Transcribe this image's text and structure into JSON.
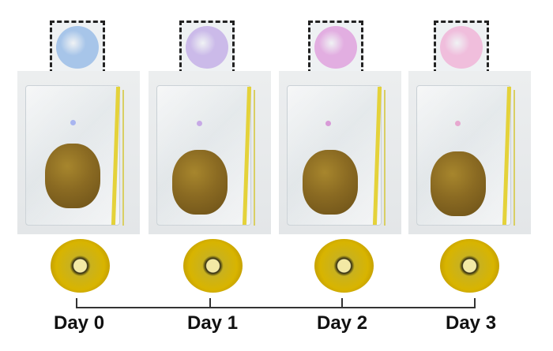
{
  "days": [
    {
      "label": "Day 0",
      "indicator_color": "#9fc0e8",
      "dot_color": "#a8b5f0"
    },
    {
      "label": "Day 1",
      "indicator_color": "#c7b4e8",
      "dot_color": "#c7a9e6"
    },
    {
      "label": "Day 2",
      "indicator_color": "#e1a6df",
      "dot_color": "#d89ad7"
    },
    {
      "label": "Day 3",
      "indicator_color": "#f0b8da",
      "dot_color": "#e7a8cf"
    }
  ]
}
